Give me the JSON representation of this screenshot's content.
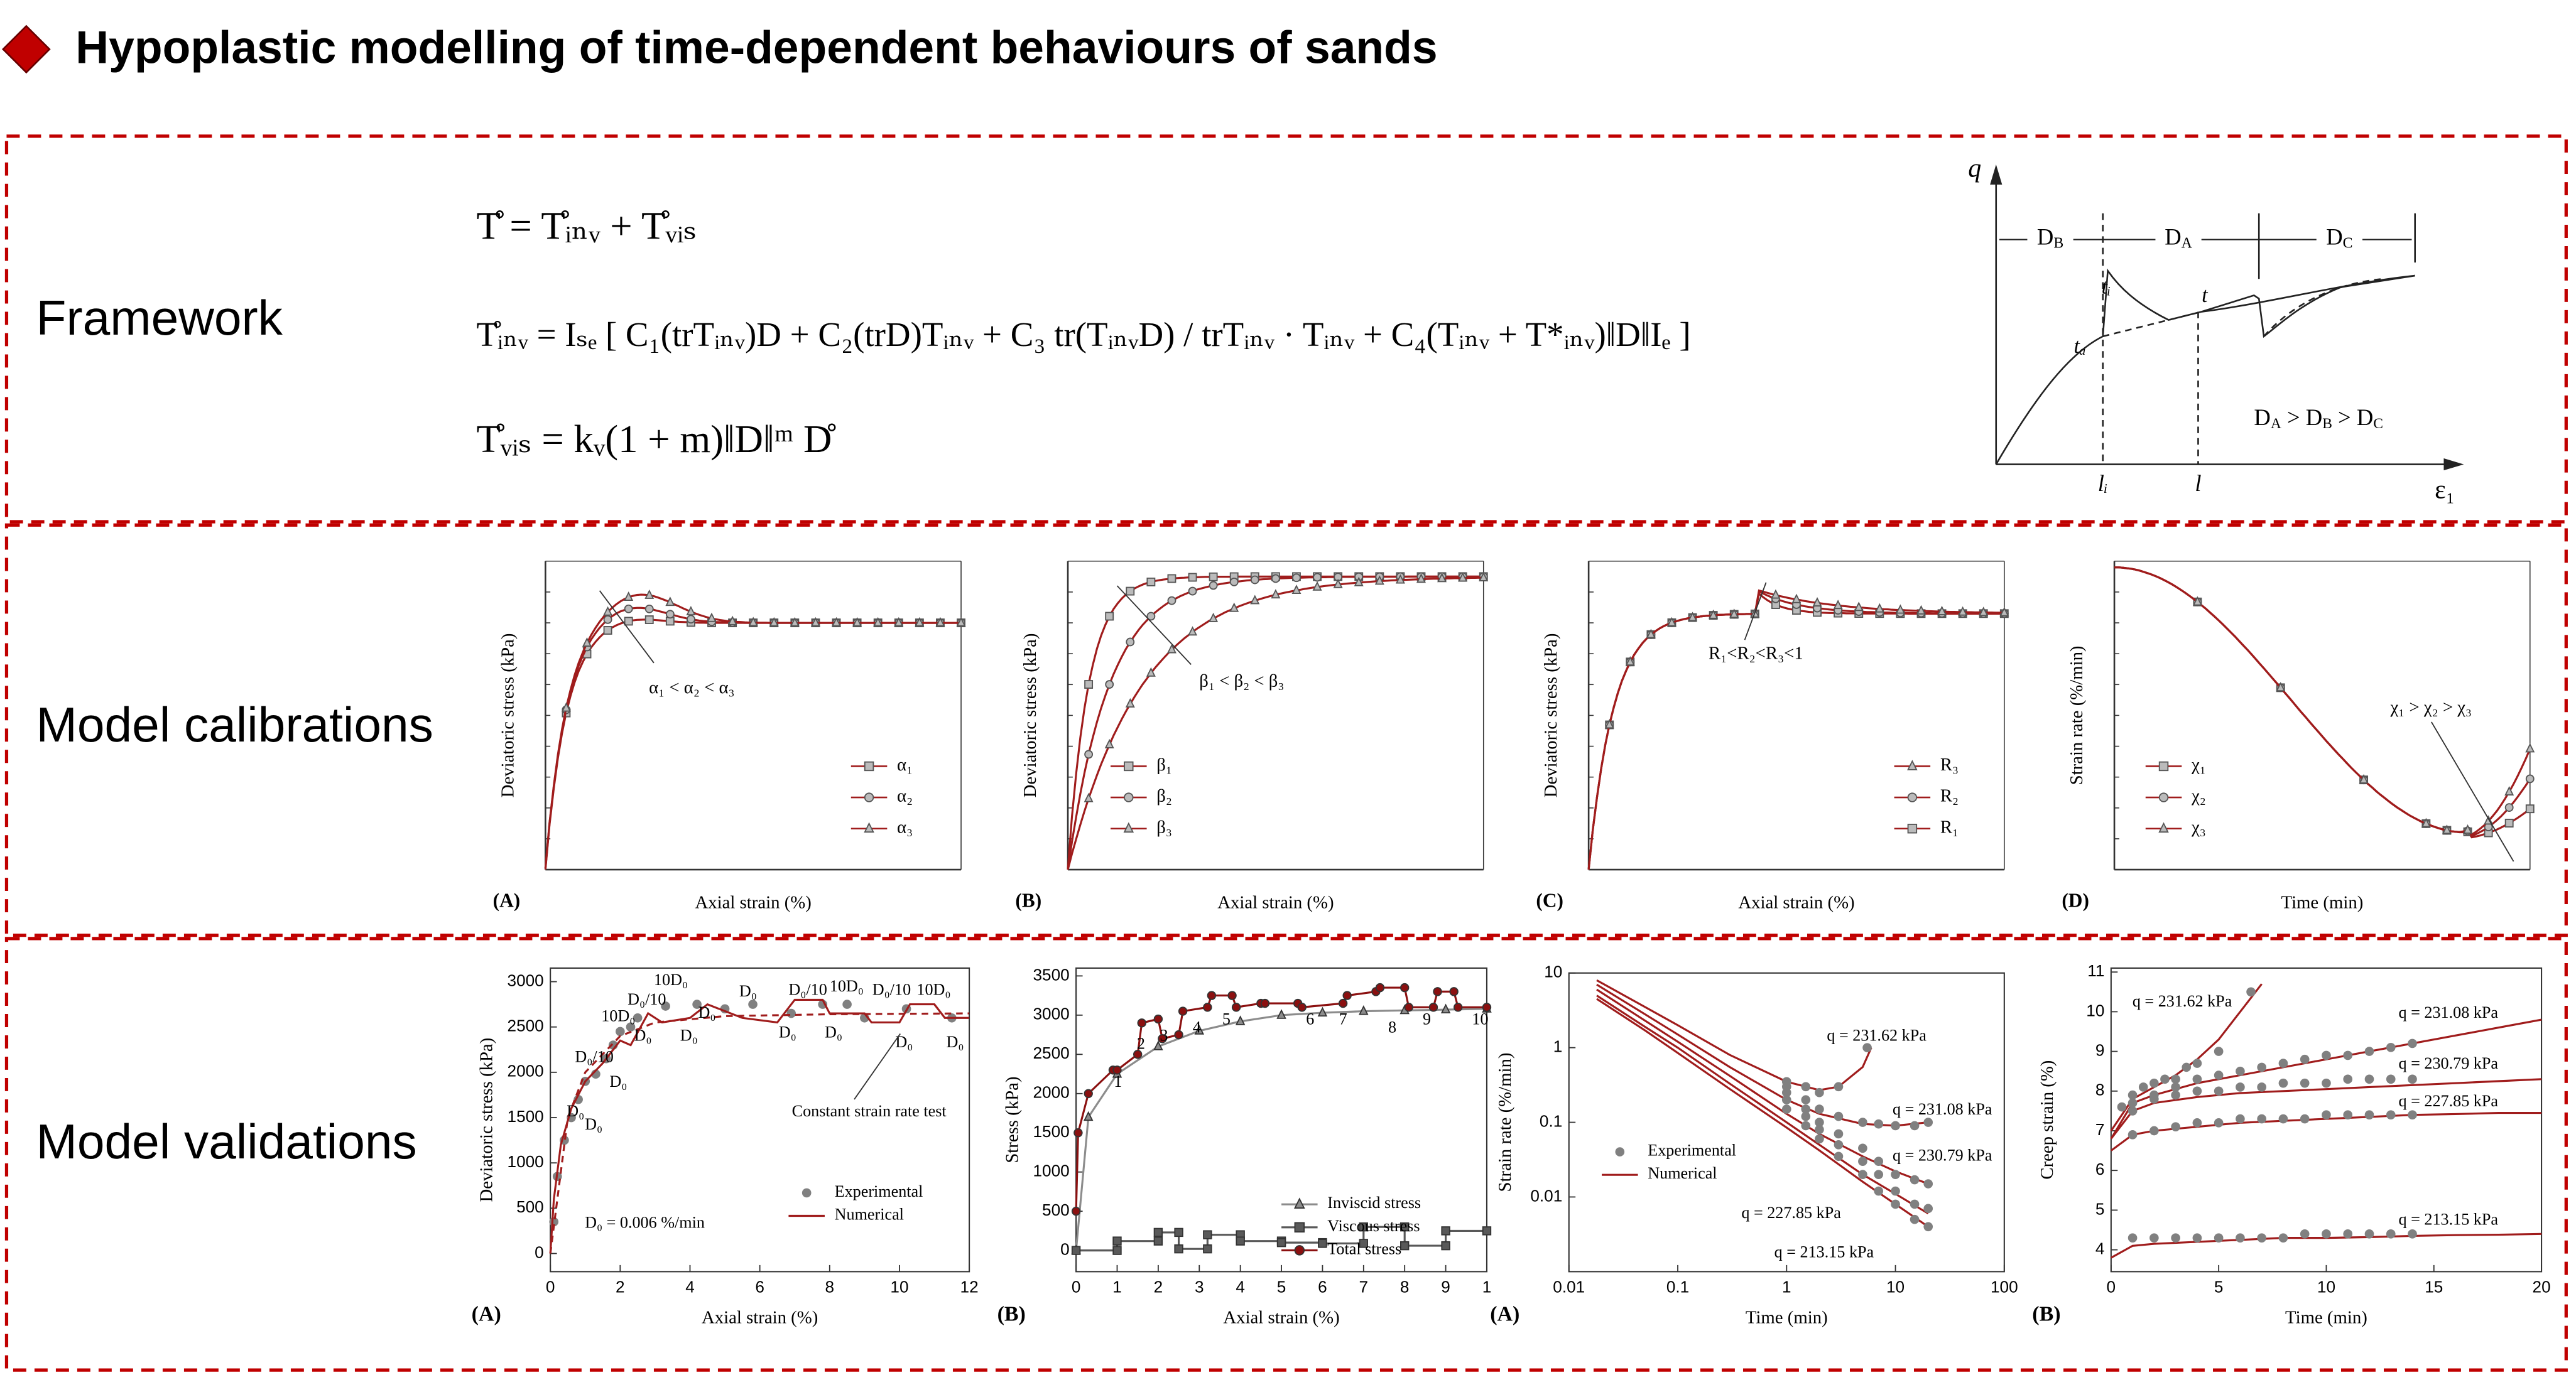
{
  "header": {
    "title": "Hypoplastic modelling of time-dependent behaviours of  sands"
  },
  "sections": [
    "Framework",
    "Model calibrations",
    "Model validations"
  ],
  "framework": {
    "equations": [
      "T̊ = T̊ᵢₙᵥ + T̊ᵥᵢₛ",
      "T̊ᵢₙᵥ = Iₛₑ [ C₁(trTᵢₙᵥ)D + C₂(trD)Tᵢₙᵥ + C₃ tr(TᵢₙᵥD) / trTᵢₙᵥ · Tᵢₙᵥ + C₄(Tᵢₙᵥ + T*ᵢₙᵥ)‖D‖Iₑ ]",
      "T̊ᵥᵢₛ = kᵥ(1 + m)‖D‖ᵐ D̊"
    ],
    "schematic": {
      "y_label": "q",
      "x_label": "ε₁",
      "zones": [
        {
          "base": "D",
          "sub": "B"
        },
        {
          "base": "D",
          "sub": "A"
        },
        {
          "base": "D",
          "sub": "C"
        }
      ],
      "points": [
        "tᵢ",
        "tₐ",
        "t"
      ],
      "x_marks": [
        "lᵢ",
        "l"
      ],
      "relation": [
        {
          "base": "D",
          "sub": "A"
        },
        {
          "base": " > ",
          "sub": ""
        },
        {
          "base": "D",
          "sub": "B"
        },
        {
          "base": " > ",
          "sub": ""
        },
        {
          "base": "D",
          "sub": "C"
        }
      ]
    }
  },
  "calibrations": [
    {
      "panel": "(A)",
      "x_label": "Axial strain (%)",
      "y_label": "Deviatoric stress (kPa)",
      "annotation": "α₁ < α₂ < α₃",
      "legend": [
        "α₁",
        "α₂",
        "α₃"
      ]
    },
    {
      "panel": "(B)",
      "x_label": "Axial strain (%)",
      "y_label": "Deviatoric stress (kPa)",
      "annotation": "β₁ < β₂ < β₃",
      "legend": [
        "β₁",
        "β₂",
        "β₃"
      ]
    },
    {
      "panel": "(C)",
      "x_label": "Axial strain (%)",
      "y_label": "Deviatoric stress (kPa)",
      "annotation": "R₁<R₂<R₃<1",
      "legend": [
        "R₃",
        "R₂",
        "R₁"
      ]
    },
    {
      "panel": "(D)",
      "x_label": "Time (min)",
      "y_label": "Strain rate (%/min)",
      "annotation": "χ₁ > χ₂ > χ₃",
      "legend": [
        "χ₁",
        "χ₂",
        "χ₃"
      ]
    }
  ],
  "chart_data": [
    {
      "type": "line",
      "panel": "(A)",
      "x_label": "Axial strain (%)",
      "y_label": "Deviatoric stress (kPa)",
      "xlim": [
        0,
        12
      ],
      "ylim": [
        -200,
        3150
      ],
      "xticks": [
        0,
        2,
        4,
        6,
        8,
        10,
        12
      ],
      "yticks": [
        0,
        500,
        1000,
        1500,
        2000,
        2500,
        3000
      ],
      "annotations": [
        "D₀",
        "D₀",
        "D₀/10",
        "D₀",
        "10D₀",
        "D₀",
        "D₀/10",
        "D₀",
        "10D₀",
        "D₀",
        "D₀",
        "D₀/10",
        "D₀",
        "10D₀",
        "D₀",
        "D₀/10",
        "D₀",
        "10D₀",
        "D₀",
        "Constant strain rate test",
        "D₀ = 0.006 %/min"
      ],
      "series": [
        {
          "name": "Experimental",
          "mode": "markers",
          "color": "#808080",
          "x": [
            0.1,
            0.2,
            0.4,
            0.6,
            0.8,
            1.0,
            1.3,
            1.6,
            1.8,
            2.0,
            2.3,
            2.5,
            3.3,
            4.2,
            5.0,
            5.8,
            6.9,
            7.8,
            8.5,
            9.0,
            10.2,
            11.5
          ],
          "values": [
            350,
            850,
            1250,
            1500,
            1700,
            1900,
            1980,
            2150,
            2300,
            2450,
            2500,
            2600,
            2730,
            2750,
            2700,
            2750,
            2650,
            2750,
            2750,
            2600,
            2700,
            2600
          ]
        },
        {
          "name": "Numerical",
          "mode": "line",
          "color": "#a01c1c",
          "x": [
            0,
            0.1,
            0.3,
            0.6,
            1.0,
            1.5,
            2.0,
            2.3,
            2.8,
            3.2,
            4.0,
            4.5,
            5.5,
            6.5,
            7.0,
            7.8,
            8.0,
            9.0,
            9.2,
            10.0,
            10.3,
            11.0,
            11.3,
            12
          ],
          "values": [
            0,
            600,
            1200,
            1600,
            1900,
            2100,
            2350,
            2300,
            2650,
            2550,
            2600,
            2750,
            2600,
            2550,
            2800,
            2800,
            2650,
            2650,
            2550,
            2550,
            2750,
            2750,
            2600,
            2600
          ]
        },
        {
          "mode": "line",
          "dash": true,
          "color": "#a01c1c",
          "x": [
            0,
            0.5,
            1,
            2,
            3,
            5,
            8,
            12
          ],
          "values": [
            0,
            1500,
            2000,
            2400,
            2550,
            2620,
            2640,
            2650
          ]
        }
      ]
    },
    {
      "type": "line",
      "panel": "(B)",
      "x_label": "Axial strain (%)",
      "y_label": "Stress (kPa)",
      "xlim": [
        0,
        10
      ],
      "ylim": [
        -270,
        3600
      ],
      "xticks": [
        0,
        1,
        2,
        3,
        4,
        5,
        6,
        7,
        8,
        9,
        {
          "value": 10,
          "label": "1"
        }
      ],
      "yticks": [
        0,
        500,
        1000,
        1500,
        2000,
        2500,
        3000,
        3500
      ],
      "annotations": [
        "1",
        "2",
        "3",
        "4",
        "5",
        "6",
        "7",
        "8",
        "9",
        "10"
      ],
      "series": [
        {
          "name": "Inviscid  stress",
          "mode": "line+markers",
          "marker": "triangle",
          "color": "#8c8c8c",
          "x": [
            0,
            0.3,
            1,
            2,
            3,
            4,
            5,
            6,
            7,
            8,
            9,
            10
          ],
          "values": [
            0,
            1700,
            2250,
            2600,
            2800,
            2920,
            3000,
            3030,
            3050,
            3060,
            3070,
            3080
          ]
        },
        {
          "name": "Viscous stress",
          "mode": "line+markers",
          "marker": "square",
          "color": "#595959",
          "x": [
            0,
            1,
            1,
            2,
            2,
            2.5,
            2.5,
            3.2,
            3.2,
            4,
            4,
            5,
            5,
            6,
            6,
            7,
            7,
            8,
            8,
            9,
            9,
            10
          ],
          "values": [
            0,
            0,
            120,
            120,
            230,
            230,
            20,
            20,
            200,
            200,
            120,
            120,
            100,
            100,
            90,
            90,
            300,
            300,
            60,
            60,
            250,
            250
          ]
        },
        {
          "name": "Total stress",
          "mode": "line+markers",
          "marker": "circle",
          "color": "#8b1010",
          "x": [
            0,
            0.05,
            0.3,
            0.9,
            1.0,
            1.5,
            1.6,
            2.0,
            2.1,
            2.5,
            2.6,
            3.2,
            3.3,
            3.8,
            3.9,
            4.5,
            4.6,
            5.4,
            5.5,
            6.5,
            6.6,
            7.3,
            7.4,
            8.0,
            8.1,
            8.7,
            8.8,
            9.2,
            9.3,
            10
          ],
          "values": [
            500,
            1500,
            2000,
            2300,
            2300,
            2500,
            2900,
            2950,
            2700,
            2750,
            3050,
            3100,
            3250,
            3250,
            3100,
            3150,
            3150,
            3150,
            3100,
            3150,
            3250,
            3300,
            3350,
            3350,
            3100,
            3100,
            3300,
            3300,
            3100,
            3100
          ]
        }
      ]
    },
    {
      "type": "line",
      "panel": "(A)",
      "x_label": "Time (min)",
      "y_label": "Strain rate (%/min)",
      "log_x": true,
      "log_y": true,
      "xlim": [
        0.01,
        100
      ],
      "ylim": [
        0.001,
        10
      ],
      "xticks": [
        0.01,
        0.1,
        1,
        10,
        100
      ],
      "yticks": [
        0.01,
        0.1,
        1,
        10
      ],
      "annotations": [
        "q = 231.62 kPa",
        "q = 231.08 kPa",
        "q = 230.79 kPa",
        "q = 227.85 kPa",
        "q = 213.15 kPa"
      ],
      "series": [
        {
          "name": "Numerical",
          "mode": "line",
          "color": "#a01c1c",
          "x": [
            0.018,
            0.05,
            0.1,
            0.3,
            1,
            2,
            3,
            5,
            6
          ],
          "values": [
            8,
            3.5,
            2,
            0.8,
            0.35,
            0.27,
            0.3,
            0.55,
            1.0
          ]
        },
        {
          "mode": "line",
          "color": "#a01c1c",
          "x": [
            0.018,
            0.05,
            0.1,
            0.3,
            1,
            2,
            5,
            10,
            20
          ],
          "values": [
            7,
            2.8,
            1.5,
            0.55,
            0.2,
            0.13,
            0.095,
            0.09,
            0.1
          ]
        },
        {
          "mode": "line",
          "color": "#a01c1c",
          "x": [
            0.018,
            0.05,
            0.1,
            0.3,
            1,
            2,
            5,
            10,
            20
          ],
          "values": [
            6,
            2.3,
            1.2,
            0.42,
            0.13,
            0.07,
            0.035,
            0.022,
            0.015
          ]
        },
        {
          "mode": "line",
          "color": "#a01c1c",
          "x": [
            0.018,
            0.05,
            0.1,
            0.3,
            1,
            2,
            5,
            10,
            20
          ],
          "values": [
            5,
            1.9,
            1.0,
            0.33,
            0.1,
            0.05,
            0.02,
            0.011,
            0.006
          ]
        },
        {
          "mode": "line",
          "color": "#a01c1c",
          "x": [
            0.018,
            0.05,
            0.1,
            0.3,
            1,
            2,
            5,
            10,
            20
          ],
          "values": [
            4.5,
            1.7,
            0.85,
            0.28,
            0.085,
            0.042,
            0.016,
            0.008,
            0.004
          ]
        },
        {
          "name": "Experimental",
          "mode": "markers",
          "color": "#808080",
          "x": [
            1,
            1.5,
            2,
            3,
            5.5
          ],
          "values": [
            0.35,
            0.3,
            0.25,
            0.3,
            1.0
          ]
        },
        {
          "mode": "markers",
          "color": "#808080",
          "x": [
            1,
            1.5,
            2,
            3,
            5,
            7,
            10,
            15,
            20
          ],
          "values": [
            0.3,
            0.2,
            0.15,
            0.12,
            0.1,
            0.095,
            0.09,
            0.09,
            0.1
          ]
        },
        {
          "mode": "markers",
          "color": "#808080",
          "x": [
            1,
            1.5,
            2,
            3,
            5,
            7,
            10,
            15,
            20
          ],
          "values": [
            0.25,
            0.15,
            0.1,
            0.07,
            0.045,
            0.03,
            0.02,
            0.017,
            0.015
          ]
        },
        {
          "mode": "markers",
          "color": "#808080",
          "x": [
            1,
            1.5,
            2,
            3,
            5,
            7,
            10,
            15,
            20
          ],
          "values": [
            0.2,
            0.12,
            0.08,
            0.05,
            0.03,
            0.02,
            0.012,
            0.008,
            0.007
          ]
        },
        {
          "mode": "markers",
          "color": "#808080",
          "x": [
            1,
            1.5,
            2,
            3,
            5,
            7,
            10,
            15,
            20
          ],
          "values": [
            0.15,
            0.09,
            0.06,
            0.035,
            0.02,
            0.012,
            0.008,
            0.005,
            0.004
          ]
        }
      ]
    },
    {
      "type": "line",
      "panel": "(B)",
      "x_label": "Time (min)",
      "y_label": "Creep strain (%)",
      "xlim": [
        0,
        20
      ],
      "ylim": [
        3.45,
        11.1
      ],
      "xticks": [
        0,
        5,
        10,
        15,
        20
      ],
      "yticks": [
        4,
        5,
        6,
        7,
        8,
        9,
        10,
        11
      ],
      "annotations": [
        "q = 231.62 kPa",
        "q = 231.08 kPa",
        "q = 230.79 kPa",
        "q = 227.85 kPa",
        "q = 213.15 kPa"
      ],
      "series": [
        {
          "mode": "line",
          "color": "#a01c1c",
          "x": [
            0,
            1,
            2,
            3,
            4,
            5,
            6,
            7
          ],
          "values": [
            7.0,
            7.8,
            8.1,
            8.4,
            8.8,
            9.3,
            10.0,
            10.7
          ]
        },
        {
          "mode": "line",
          "color": "#a01c1c",
          "x": [
            0,
            1,
            2,
            4,
            6,
            8,
            10,
            12,
            14,
            16,
            18,
            20
          ],
          "values": [
            6.8,
            7.7,
            7.9,
            8.2,
            8.4,
            8.6,
            8.8,
            9.0,
            9.2,
            9.4,
            9.6,
            9.8
          ]
        },
        {
          "mode": "line",
          "color": "#a01c1c",
          "x": [
            0,
            1,
            2,
            4,
            6,
            8,
            10,
            12,
            14,
            16,
            18,
            20
          ],
          "values": [
            6.8,
            7.5,
            7.7,
            7.85,
            7.95,
            8.0,
            8.05,
            8.1,
            8.15,
            8.2,
            8.25,
            8.3
          ]
        },
        {
          "mode": "line",
          "color": "#a01c1c",
          "x": [
            0,
            1,
            2,
            4,
            6,
            8,
            10,
            12,
            14,
            16,
            18,
            20
          ],
          "values": [
            6.5,
            6.9,
            7.0,
            7.1,
            7.2,
            7.25,
            7.3,
            7.35,
            7.4,
            7.42,
            7.45,
            7.45
          ]
        },
        {
          "mode": "line",
          "color": "#a01c1c",
          "x": [
            0,
            1,
            2,
            4,
            6,
            8,
            10,
            12,
            14,
            16,
            18,
            20
          ],
          "values": [
            3.8,
            4.1,
            4.15,
            4.2,
            4.25,
            4.3,
            4.3,
            4.32,
            4.35,
            4.37,
            4.38,
            4.4
          ]
        },
        {
          "mode": "markers",
          "color": "#808080",
          "x": [
            0.5,
            1,
            1.5,
            2,
            2.5,
            3,
            3.5,
            4,
            5,
            6.5
          ],
          "values": [
            7.6,
            7.9,
            8.1,
            8.2,
            8.3,
            8.3,
            8.6,
            8.7,
            9.0,
            10.5
          ]
        },
        {
          "mode": "markers",
          "color": "#808080",
          "x": [
            1,
            2,
            3,
            4,
            5,
            6,
            7,
            8,
            9,
            10,
            11,
            12,
            13,
            14
          ],
          "values": [
            7.7,
            7.9,
            8.1,
            8.3,
            8.4,
            8.5,
            8.6,
            8.7,
            8.8,
            8.9,
            8.9,
            9.0,
            9.1,
            9.2
          ]
        },
        {
          "mode": "markers",
          "color": "#808080",
          "x": [
            1,
            2,
            3,
            4,
            5,
            6,
            7,
            8,
            9,
            10,
            11,
            12,
            13,
            14
          ],
          "values": [
            7.5,
            7.8,
            7.9,
            8.0,
            8.0,
            8.1,
            8.1,
            8.2,
            8.2,
            8.2,
            8.3,
            8.3,
            8.3,
            8.3
          ]
        },
        {
          "mode": "markers",
          "color": "#808080",
          "x": [
            1,
            2,
            3,
            4,
            5,
            6,
            7,
            8,
            9,
            10,
            11,
            12,
            13,
            14
          ],
          "values": [
            6.9,
            7.0,
            7.1,
            7.2,
            7.2,
            7.3,
            7.3,
            7.3,
            7.3,
            7.4,
            7.4,
            7.4,
            7.4,
            7.4
          ]
        },
        {
          "mode": "markers",
          "color": "#808080",
          "x": [
            1,
            2,
            3,
            4,
            5,
            6,
            7,
            8,
            9,
            10,
            11,
            12,
            13,
            14
          ],
          "values": [
            4.3,
            4.3,
            4.3,
            4.3,
            4.3,
            4.3,
            4.3,
            4.3,
            4.4,
            4.4,
            4.4,
            4.4,
            4.4,
            4.4
          ]
        }
      ]
    }
  ]
}
